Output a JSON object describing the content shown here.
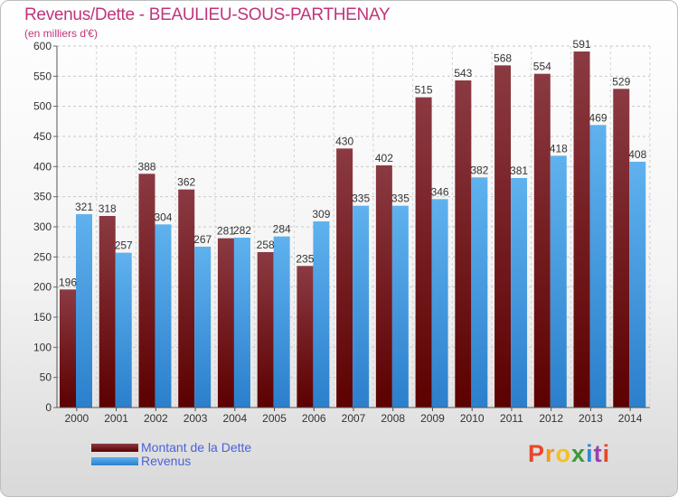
{
  "header": {
    "title": "Revenus/Dette - BEAULIEU-SOUS-PARTHENAY",
    "subtitle": "(en milliers d'€)"
  },
  "colors": {
    "dette_top": "#8b3a42",
    "dette_bottom": "#5c0000",
    "revenus_top": "#5fb2ee",
    "revenus_bottom": "#2b7fcc",
    "title": "#c0347a",
    "legend_text": "#4a62d8",
    "logo": [
      "#e8462a",
      "#f29a1a",
      "#f4c020",
      "#3b9a3b",
      "#2d8ad8",
      "#9b3fb0",
      "#e8462a"
    ]
  },
  "chart_data": {
    "type": "bar",
    "title": "Revenus/Dette - BEAULIEU-SOUS-PARTHENAY",
    "subtitle": "(en milliers d'€)",
    "xlabel": "",
    "ylabel": "",
    "ylim": [
      0,
      600
    ],
    "yticks": [
      0,
      50,
      100,
      150,
      200,
      250,
      300,
      350,
      400,
      450,
      500,
      550,
      600
    ],
    "grid": true,
    "legend_position": "bottom-left",
    "categories": [
      "2000",
      "2001",
      "2002",
      "2003",
      "2004",
      "2005",
      "2006",
      "2007",
      "2008",
      "2009",
      "2010",
      "2011",
      "2012",
      "2013",
      "2014"
    ],
    "series": [
      {
        "name": "Montant de la Dette",
        "values": [
          196,
          318,
          388,
          362,
          281,
          258,
          235,
          430,
          402,
          515,
          543,
          568,
          554,
          591,
          529
        ]
      },
      {
        "name": "Revenus",
        "values": [
          321,
          257,
          304,
          267,
          282,
          284,
          309,
          335,
          335,
          346,
          382,
          381,
          418,
          469,
          408
        ]
      }
    ]
  },
  "legend": {
    "items": [
      {
        "label": "Montant de la Dette"
      },
      {
        "label": "Revenus"
      }
    ]
  },
  "logo": {
    "letters": [
      "P",
      "r",
      "o",
      "x",
      "i",
      "t",
      "i"
    ]
  }
}
